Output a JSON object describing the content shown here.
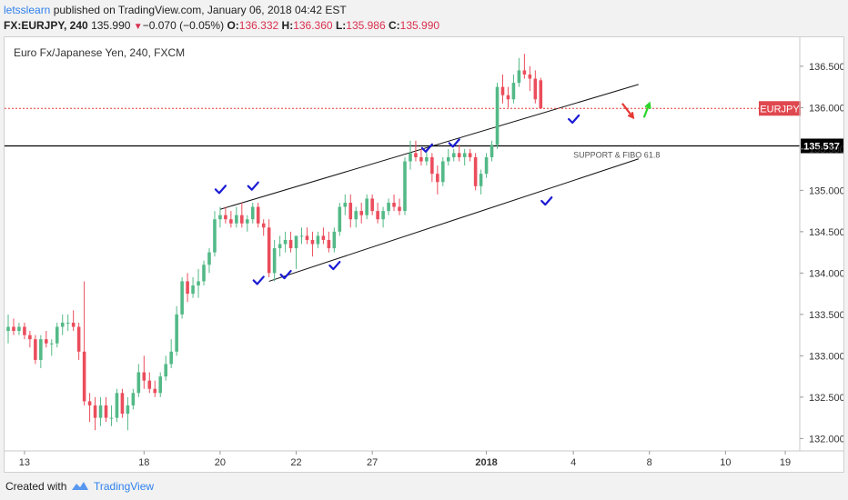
{
  "header": {
    "author": "letsslearn",
    "published": " published on TradingView.com, January 06, 2018 04:42 EST",
    "symbol": "FX:EURJPY, 240",
    "last": "135.990",
    "change": "−0.070 (−0.05%)",
    "o_label": "O:",
    "o_val": "136.332",
    "h_label": "H:",
    "h_val": "136.360",
    "l_label": "L:",
    "l_val": "135.986",
    "c_label": "C:",
    "c_val": "135.990"
  },
  "footer": {
    "created": "Created with",
    "brand": "TradingView"
  },
  "colors": {
    "up": "#53b987",
    "down": "#eb4d5c",
    "check": "#1a1ad4",
    "line": "#111111",
    "price_line": "#e53935"
  },
  "chart_data": {
    "type": "candlestick",
    "title": "Euro Fx/Japanese Yen, 240, FXCM",
    "ylim": [
      131.85,
      136.85
    ],
    "yticks": [
      132.0,
      132.5,
      133.0,
      133.5,
      134.0,
      134.5,
      135.0,
      135.5,
      136.0,
      136.5
    ],
    "ytick_labels": [
      "132.000",
      "132.500",
      "133.000",
      "133.500",
      "134.000",
      "134.500",
      "135.000",
      "135.500",
      "136.000",
      "136.500"
    ],
    "xlim": [
      0,
      145
    ],
    "xticks": [
      {
        "x": 3,
        "label": "13"
      },
      {
        "x": 25,
        "label": "18"
      },
      {
        "x": 39,
        "label": "20"
      },
      {
        "x": 53,
        "label": "22"
      },
      {
        "x": 67,
        "label": "27"
      },
      {
        "x": 88,
        "label": "2018"
      },
      {
        "x": 104,
        "label": "4"
      },
      {
        "x": 118,
        "label": "8"
      },
      {
        "x": 132,
        "label": "10"
      },
      {
        "x": 143,
        "label": "19"
      }
    ],
    "candles": [
      [
        133.3,
        133.5,
        133.15,
        133.35
      ],
      [
        133.35,
        133.45,
        133.25,
        133.3
      ],
      [
        133.3,
        133.4,
        133.25,
        133.35
      ],
      [
        133.35,
        133.4,
        133.2,
        133.25
      ],
      [
        133.25,
        133.3,
        133.1,
        133.2
      ],
      [
        133.2,
        133.25,
        132.9,
        132.95
      ],
      [
        132.95,
        133.25,
        132.85,
        133.2
      ],
      [
        133.2,
        133.3,
        133.1,
        133.15
      ],
      [
        133.15,
        133.2,
        133.0,
        133.15
      ],
      [
        133.15,
        133.4,
        133.1,
        133.35
      ],
      [
        133.35,
        133.5,
        133.25,
        133.4
      ],
      [
        133.4,
        133.5,
        133.3,
        133.4
      ],
      [
        133.4,
        133.55,
        133.3,
        133.35
      ],
      [
        133.35,
        133.4,
        132.95,
        133.05
      ],
      [
        133.05,
        133.9,
        132.4,
        132.45
      ],
      [
        132.45,
        132.55,
        132.2,
        132.4
      ],
      [
        132.4,
        132.5,
        132.1,
        132.25
      ],
      [
        132.25,
        132.5,
        132.15,
        132.4
      ],
      [
        132.4,
        132.5,
        132.2,
        132.25
      ],
      [
        132.25,
        132.4,
        132.15,
        132.25
      ],
      [
        132.25,
        132.6,
        132.2,
        132.55
      ],
      [
        132.55,
        132.6,
        132.25,
        132.3
      ],
      [
        132.3,
        132.5,
        132.1,
        132.4
      ],
      [
        132.4,
        132.6,
        132.35,
        132.55
      ],
      [
        132.55,
        132.9,
        132.5,
        132.8
      ],
      [
        132.8,
        133.0,
        132.6,
        132.7
      ],
      [
        132.7,
        132.8,
        132.55,
        132.6
      ],
      [
        132.6,
        132.7,
        132.5,
        132.55
      ],
      [
        132.55,
        132.8,
        132.5,
        132.75
      ],
      [
        132.75,
        133.0,
        132.7,
        132.9
      ],
      [
        132.9,
        133.2,
        132.85,
        133.05
      ],
      [
        133.05,
        133.6,
        133.0,
        133.5
      ],
      [
        133.5,
        133.95,
        133.45,
        133.9
      ],
      [
        133.9,
        134.0,
        133.65,
        133.75
      ],
      [
        133.75,
        133.95,
        133.7,
        133.85
      ],
      [
        133.85,
        134.05,
        133.7,
        133.9
      ],
      [
        133.9,
        134.15,
        133.85,
        134.1
      ],
      [
        134.1,
        134.3,
        134.0,
        134.25
      ],
      [
        134.25,
        134.75,
        134.2,
        134.65
      ],
      [
        134.65,
        134.8,
        134.55,
        134.7
      ],
      [
        134.7,
        134.8,
        134.6,
        134.65
      ],
      [
        134.65,
        134.75,
        134.55,
        134.6
      ],
      [
        134.6,
        134.8,
        134.55,
        134.7
      ],
      [
        134.7,
        134.85,
        134.55,
        134.6
      ],
      [
        134.6,
        134.7,
        134.5,
        134.65
      ],
      [
        134.65,
        134.85,
        134.6,
        134.8
      ],
      [
        134.8,
        134.85,
        134.55,
        134.6
      ],
      [
        134.6,
        134.65,
        134.45,
        134.55
      ],
      [
        134.55,
        134.65,
        133.95,
        134.0
      ],
      [
        134.0,
        134.4,
        133.9,
        134.3
      ],
      [
        134.3,
        134.45,
        134.2,
        134.35
      ],
      [
        134.35,
        134.5,
        134.25,
        134.4
      ],
      [
        134.4,
        134.5,
        134.25,
        134.3
      ],
      [
        134.3,
        134.45,
        134.05,
        134.45
      ],
      [
        134.45,
        134.55,
        134.35,
        134.45
      ],
      [
        134.45,
        134.55,
        134.35,
        134.4
      ],
      [
        134.4,
        134.5,
        134.2,
        134.35
      ],
      [
        134.35,
        134.5,
        134.3,
        134.45
      ],
      [
        134.45,
        134.55,
        134.35,
        134.4
      ],
      [
        134.4,
        134.5,
        134.25,
        134.3
      ],
      [
        134.3,
        134.55,
        134.25,
        134.5
      ],
      [
        134.5,
        134.85,
        134.45,
        134.8
      ],
      [
        134.8,
        134.95,
        134.7,
        134.85
      ],
      [
        134.85,
        134.95,
        134.55,
        134.65
      ],
      [
        134.65,
        134.8,
        134.55,
        134.75
      ],
      [
        134.75,
        134.85,
        134.6,
        134.7
      ],
      [
        134.7,
        134.95,
        134.65,
        134.9
      ],
      [
        134.9,
        134.95,
        134.7,
        134.75
      ],
      [
        134.75,
        134.85,
        134.6,
        134.65
      ],
      [
        134.65,
        134.8,
        134.55,
        134.75
      ],
      [
        134.75,
        134.9,
        134.7,
        134.85
      ],
      [
        134.85,
        134.95,
        134.75,
        134.8
      ],
      [
        134.8,
        134.9,
        134.7,
        134.75
      ],
      [
        134.75,
        135.4,
        134.7,
        135.35
      ],
      [
        135.35,
        135.6,
        135.25,
        135.45
      ],
      [
        135.45,
        135.6,
        135.35,
        135.4
      ],
      [
        135.4,
        135.5,
        135.3,
        135.35
      ],
      [
        135.35,
        135.5,
        135.3,
        135.4
      ],
      [
        135.4,
        135.45,
        135.1,
        135.2
      ],
      [
        135.2,
        135.3,
        134.95,
        135.1
      ],
      [
        135.1,
        135.4,
        135.05,
        135.35
      ],
      [
        135.35,
        135.5,
        135.3,
        135.4
      ],
      [
        135.4,
        135.5,
        135.35,
        135.45
      ],
      [
        135.45,
        135.55,
        135.35,
        135.4
      ],
      [
        135.4,
        135.5,
        135.3,
        135.45
      ],
      [
        135.45,
        135.5,
        135.35,
        135.4
      ],
      [
        135.4,
        135.45,
        135.0,
        135.05
      ],
      [
        135.05,
        135.25,
        134.95,
        135.2
      ],
      [
        135.2,
        135.45,
        135.15,
        135.4
      ],
      [
        135.4,
        135.6,
        135.35,
        135.55
      ],
      [
        135.55,
        136.3,
        135.5,
        136.25
      ],
      [
        136.25,
        136.4,
        136.05,
        136.15
      ],
      [
        136.15,
        136.25,
        136.0,
        136.1
      ],
      [
        136.1,
        136.4,
        136.05,
        136.3
      ],
      [
        136.3,
        136.6,
        136.25,
        136.45
      ],
      [
        136.45,
        136.65,
        136.35,
        136.4
      ],
      [
        136.4,
        136.5,
        136.2,
        136.35
      ],
      [
        136.35,
        136.45,
        136.05,
        136.1
      ],
      [
        136.33,
        136.36,
        135.99,
        135.99
      ]
    ],
    "price_line": {
      "value": 135.99,
      "label": "EURJPY"
    },
    "horizontal_line": {
      "value": 135.537,
      "label": "135.537"
    },
    "annotation": "SUPPORT & FIBO 61.8",
    "channel_upper": [
      [
        39,
        134.77
      ],
      [
        116,
        136.28
      ]
    ],
    "channel_lower": [
      [
        48,
        133.9
      ],
      [
        116,
        135.38
      ]
    ],
    "check_marks": [
      [
        39,
        135.0
      ],
      [
        45,
        135.04
      ],
      [
        46,
        133.9
      ],
      [
        51,
        133.97
      ],
      [
        60,
        134.08
      ],
      [
        77,
        135.5
      ],
      [
        82,
        135.56
      ],
      [
        99,
        134.86
      ],
      [
        104,
        135.85
      ]
    ],
    "arrows": [
      {
        "type": "down",
        "from": [
          113,
          136.05
        ],
        "to": [
          115,
          135.88
        ]
      },
      {
        "type": "up",
        "from": [
          117,
          135.88
        ],
        "to": [
          118,
          136.05
        ]
      }
    ]
  }
}
